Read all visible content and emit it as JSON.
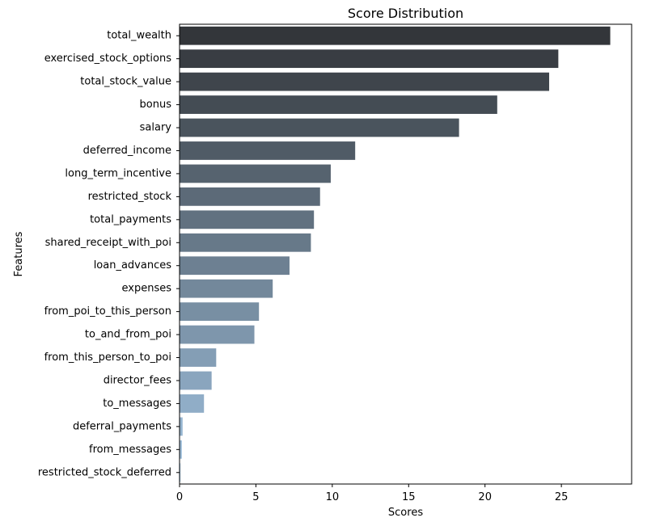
{
  "chart_data": {
    "type": "bar",
    "orientation": "horizontal",
    "title": "Score Distribution",
    "xlabel": "Scores",
    "ylabel": "Features",
    "xlim": [
      0,
      29.6
    ],
    "xticks": [
      0,
      5,
      10,
      15,
      20,
      25
    ],
    "grid": false,
    "legend": "none",
    "palette": {
      "start": "#33363a",
      "end": "#a1c3e1"
    },
    "categories": [
      "total_wealth",
      "exercised_stock_options",
      "total_stock_value",
      "bonus",
      "salary",
      "deferred_income",
      "long_term_incentive",
      "restricted_stock",
      "total_payments",
      "shared_receipt_with_poi",
      "loan_advances",
      "expenses",
      "from_poi_to_this_person",
      "to_and_from_poi",
      "from_this_person_to_poi",
      "director_fees",
      "to_messages",
      "deferral_payments",
      "from_messages",
      "restricted_stock_deferred"
    ],
    "values": [
      28.2,
      24.8,
      24.2,
      20.8,
      18.3,
      11.5,
      9.9,
      9.2,
      8.8,
      8.6,
      7.2,
      6.1,
      5.2,
      4.9,
      2.4,
      2.1,
      1.6,
      0.2,
      0.15,
      0.06
    ]
  }
}
